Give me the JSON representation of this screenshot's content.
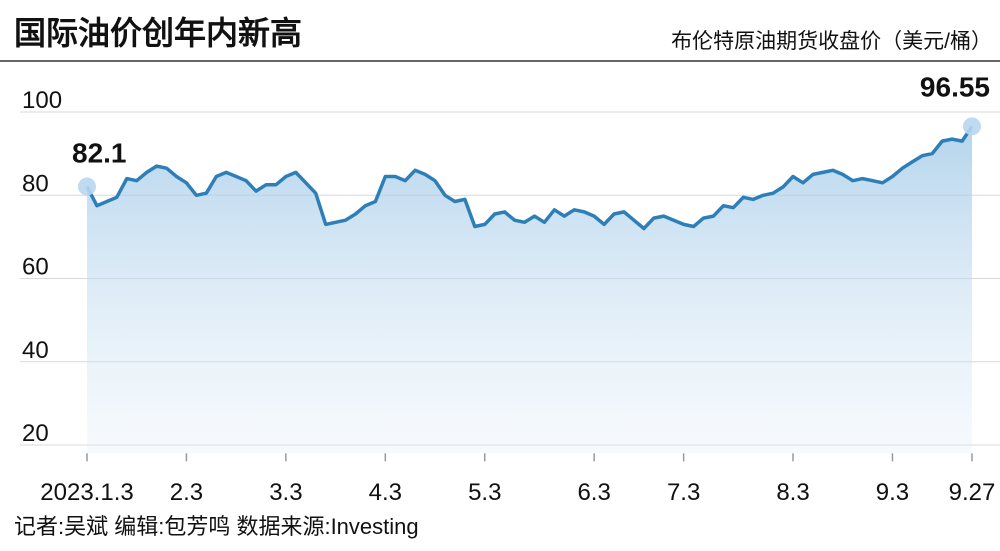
{
  "chart_data": {
    "type": "line",
    "title": "国际油价创年内新高",
    "subtitle": "布伦特原油期货收盘价（美元/桶）",
    "note": "记者:吴斌  编辑:包芳鸣  数据来源:Investing",
    "categories": [
      "2023.1.3",
      null,
      null,
      null,
      null,
      null,
      null,
      null,
      null,
      null,
      "2.3",
      null,
      null,
      null,
      null,
      null,
      null,
      null,
      null,
      null,
      "3.3",
      null,
      null,
      null,
      null,
      null,
      null,
      null,
      null,
      null,
      "4.3",
      null,
      null,
      null,
      null,
      null,
      null,
      null,
      null,
      null,
      "5.3",
      null,
      null,
      null,
      null,
      null,
      null,
      null,
      null,
      null,
      null,
      "6.3",
      null,
      null,
      null,
      null,
      null,
      null,
      null,
      null,
      "7.3",
      null,
      null,
      null,
      null,
      null,
      null,
      null,
      null,
      null,
      null,
      "8.3",
      null,
      null,
      null,
      null,
      null,
      null,
      null,
      null,
      null,
      "9.3",
      null,
      null,
      null,
      null,
      null,
      null,
      null,
      "9.27"
    ],
    "values": [
      82.1,
      77.5,
      78.5,
      79.5,
      84,
      83.5,
      85.5,
      87,
      86.5,
      84.5,
      83,
      80,
      80.5,
      84.5,
      85.5,
      84.5,
      83.5,
      81,
      82.5,
      82.5,
      84.5,
      85.5,
      83,
      80.5,
      73,
      73.5,
      74,
      75.5,
      77.5,
      78.5,
      84.5,
      84.5,
      83.5,
      86,
      85,
      83.5,
      80,
      78.5,
      79,
      72.5,
      73,
      75.5,
      76,
      74,
      73.5,
      75,
      73.5,
      76.5,
      75,
      76.5,
      76,
      75,
      73,
      75.5,
      76,
      74,
      72,
      74.5,
      75,
      74,
      73,
      72.5,
      74.5,
      75,
      77.5,
      77,
      79.5,
      79,
      80,
      80.5,
      82,
      84.5,
      83,
      85,
      85.5,
      86,
      85,
      83.5,
      84,
      83.5,
      83,
      84.5,
      86.5,
      88,
      89.5,
      90,
      93,
      93.5,
      93,
      96.55
    ],
    "color": "#2e7fb8",
    "ylim": [
      18,
      104
    ],
    "yticks": [
      20,
      40,
      60,
      80,
      100
    ],
    "grid": true
  }
}
